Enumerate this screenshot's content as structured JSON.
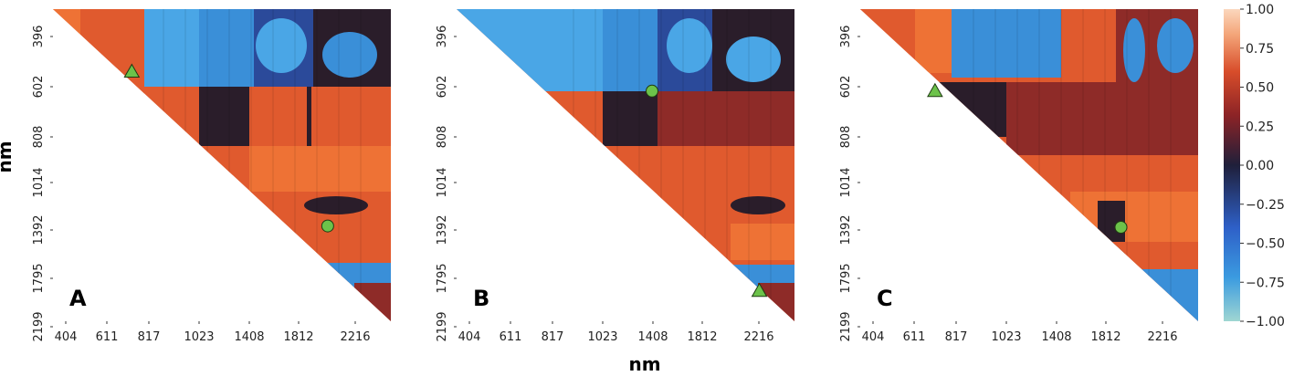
{
  "chart_data": {
    "type": "heatmap",
    "xlabel": "nm",
    "ylabel": "nm",
    "x_ticks": [
      "404",
      "611",
      "817",
      "1023",
      "1408",
      "1812",
      "2216"
    ],
    "y_ticks": [
      "396",
      "602",
      "808",
      "1014",
      "1392",
      "1795",
      "2199"
    ],
    "colorbar": {
      "min": -1.0,
      "max": 1.0,
      "ticks": [
        "1.00",
        "0.75",
        "0.50",
        "0.25",
        "0.00",
        "−0.25",
        "−0.50",
        "−0.75",
        "−1.00"
      ],
      "colors": [
        "#9fd6d2",
        "#3b9be0",
        "#2e60c8",
        "#1f1f3a",
        "#8c2326",
        "#d84d2a",
        "#f4a67a",
        "#fbd7bd"
      ]
    },
    "panels": [
      {
        "label": "A",
        "markers": [
          {
            "shape": "triangle",
            "x_nm": 720,
            "y_nm": 540
          },
          {
            "shape": "circle",
            "x_nm": 2000,
            "y_nm": 1360
          }
        ]
      },
      {
        "label": "B",
        "markers": [
          {
            "shape": "circle",
            "x_nm": 1380,
            "y_nm": 620
          },
          {
            "shape": "triangle",
            "x_nm": 2200,
            "y_nm": 1900
          }
        ]
      },
      {
        "label": "C",
        "markers": [
          {
            "shape": "triangle",
            "x_nm": 700,
            "y_nm": 620
          },
          {
            "shape": "circle",
            "x_nm": 1900,
            "y_nm": 1370
          }
        ]
      }
    ]
  }
}
